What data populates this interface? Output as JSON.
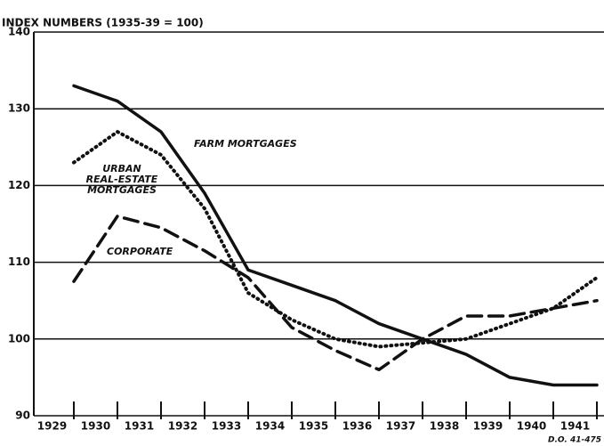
{
  "chart_data": {
    "type": "line",
    "title": "INDEX NUMBERS (1935-39 = 100)",
    "categories": [
      "1929",
      "1930",
      "1931",
      "1932",
      "1933",
      "1934",
      "1935",
      "1936",
      "1937",
      "1938",
      "1939",
      "1940",
      "1941"
    ],
    "series": [
      {
        "name": "FARM MORTGAGES",
        "color": "#111111",
        "style": "solid",
        "values": [
          133,
          131,
          127,
          119,
          109,
          107,
          105,
          102,
          100,
          98,
          95,
          94,
          94
        ]
      },
      {
        "name": "URBAN REAL-ESTATE MORTGAGES",
        "color": "#111111",
        "style": "dotted",
        "values": [
          123,
          127,
          124,
          117,
          106,
          102.5,
          100,
          99,
          99.5,
          100,
          102,
          104,
          108
        ]
      },
      {
        "name": "CORPORATE",
        "color": "#111111",
        "style": "dashed",
        "values": [
          107.5,
          116,
          114.5,
          111.5,
          108,
          101.5,
          98.5,
          96,
          100,
          103,
          103,
          104,
          105
        ]
      }
    ],
    "ylim": [
      90,
      140
    ],
    "yticks": [
      90,
      100,
      110,
      120,
      130,
      140
    ],
    "grid": true,
    "source_note": "D.O. 41-475"
  }
}
